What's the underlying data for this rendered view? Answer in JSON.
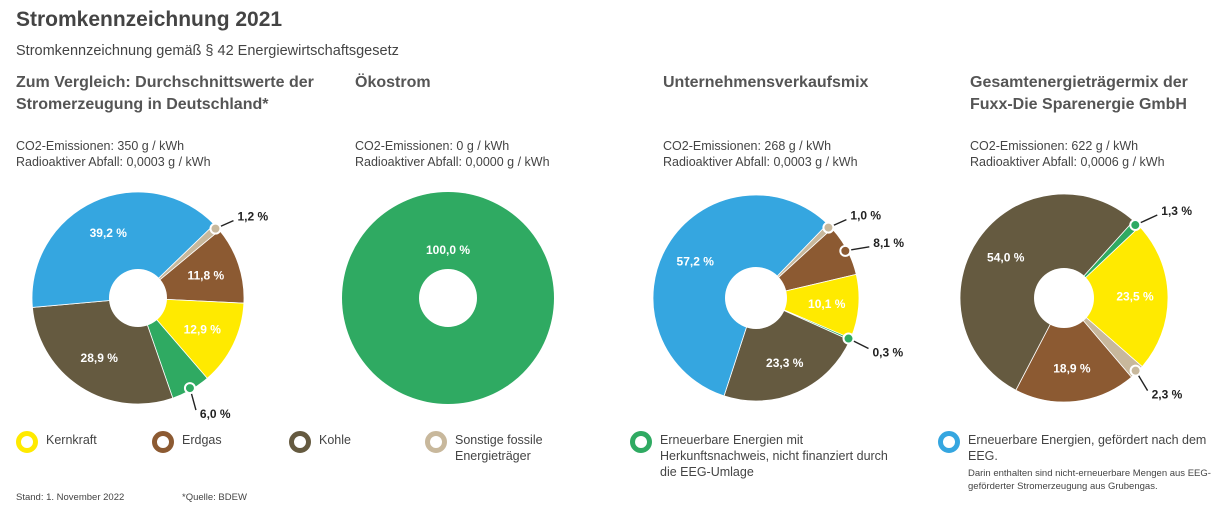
{
  "title": "Stromkennzeichnung 2021",
  "subtitle": "Stromkennzeichnung gemäß § 42 Energiewirtschaftsgesetz",
  "colors": {
    "kernkraft": "#ffea00",
    "erdgas": "#8c5a32",
    "kohle": "#655a40",
    "sonstige": "#c8b89c",
    "erneuerbar": "#2faa62",
    "eeg": "#35a6e0"
  },
  "chart_data": [
    {
      "type": "pie",
      "title": "Zum Vergleich: Durchschnittswerte der Stromerzeugung in Deutschland*",
      "co2": "CO2-Emissionen: 350 g / kWh",
      "waste": "Radioaktiver Abfall: 0,0003 g / kWh",
      "slices": [
        {
          "category": "Sonstige fossile Energieträger",
          "value": 1.2,
          "label": "1,2 %"
        },
        {
          "category": "Erdgas",
          "value": 11.8,
          "label": "11,8 %"
        },
        {
          "category": "Kernkraft",
          "value": 12.9,
          "label": "12,9 %"
        },
        {
          "category": "Erneuerbare Energien mit Herkunftsnachweis, nicht finanziert durch die EEG-Umlage",
          "value": 6.0,
          "label": "6,0 %"
        },
        {
          "category": "Kohle",
          "value": 28.9,
          "label": "28,9 %"
        },
        {
          "category": "Erneuerbare Energien, gefördert nach dem EEG.",
          "value": 39.2,
          "label": "39,2 %"
        }
      ]
    },
    {
      "type": "pie",
      "title": "Ökostrom",
      "co2": "CO2-Emissionen: 0 g / kWh",
      "waste": "Radioaktiver Abfall: 0,0000 g / kWh",
      "slices": [
        {
          "category": "Erneuerbare Energien mit Herkunftsnachweis, nicht finanziert durch die EEG-Umlage",
          "value": 100.0,
          "label": "100,0 %"
        }
      ]
    },
    {
      "type": "pie",
      "title": "Unternehmensverkaufsmix",
      "co2": "CO2-Emissionen: 268 g / kWh",
      "waste": "Radioaktiver Abfall: 0,0003 g / kWh",
      "slices": [
        {
          "category": "Sonstige fossile Energieträger",
          "value": 1.0,
          "label": "1,0 %"
        },
        {
          "category": "Erdgas",
          "value": 8.1,
          "label": "8,1 %"
        },
        {
          "category": "Kernkraft",
          "value": 10.1,
          "label": "10,1 %"
        },
        {
          "category": "Erneuerbare Energien mit Herkunftsnachweis, nicht finanziert durch die EEG-Umlage",
          "value": 0.3,
          "label": "0,3 %"
        },
        {
          "category": "Kohle",
          "value": 23.3,
          "label": "23,3 %"
        },
        {
          "category": "Erneuerbare Energien, gefördert nach dem EEG.",
          "value": 57.2,
          "label": "57,2 %"
        }
      ]
    },
    {
      "type": "pie",
      "title": "Gesamtenergieträgermix der Fuxx-Die Sparenergie GmbH",
      "co2": "CO2-Emissionen: 622 g / kWh",
      "waste": "Radioaktiver Abfall: 0,0006 g / kWh",
      "slices": [
        {
          "category": "Erneuerbare Energien mit Herkunftsnachweis, nicht finanziert durch die EEG-Umlage",
          "value": 1.3,
          "label": "1,3 %"
        },
        {
          "category": "Kernkraft",
          "value": 23.5,
          "label": "23,5 %"
        },
        {
          "category": "Sonstige fossile Energieträger",
          "value": 2.3,
          "label": "2,3 %"
        },
        {
          "category": "Erdgas",
          "value": 18.9,
          "label": "18,9 %"
        },
        {
          "category": "Kohle",
          "value": 54.0,
          "label": "54,0 %"
        }
      ]
    }
  ],
  "legend": [
    {
      "label": "Kernkraft",
      "color": "#ffea00"
    },
    {
      "label": "Erdgas",
      "color": "#8c5a32"
    },
    {
      "label": "Kohle",
      "color": "#655a40"
    },
    {
      "label": "Sonstige fossile Energieträger",
      "color": "#c8b89c"
    },
    {
      "label": "Erneuerbare Energien mit Herkunftsnachweis, nicht finanziert durch die EEG-Umlage",
      "color": "#2faa62"
    },
    {
      "label": "Erneuerbare Energien, gefördert nach dem EEG.",
      "color": "#35a6e0"
    }
  ],
  "legend_note": "Darin enthalten sind nicht-erneuerbare Mengen aus EEG-geförderter Stromerzeugung aus Grubengas.",
  "footer": {
    "stand": "Stand: 1. November 2022",
    "quelle": "*Quelle: BDEW"
  }
}
